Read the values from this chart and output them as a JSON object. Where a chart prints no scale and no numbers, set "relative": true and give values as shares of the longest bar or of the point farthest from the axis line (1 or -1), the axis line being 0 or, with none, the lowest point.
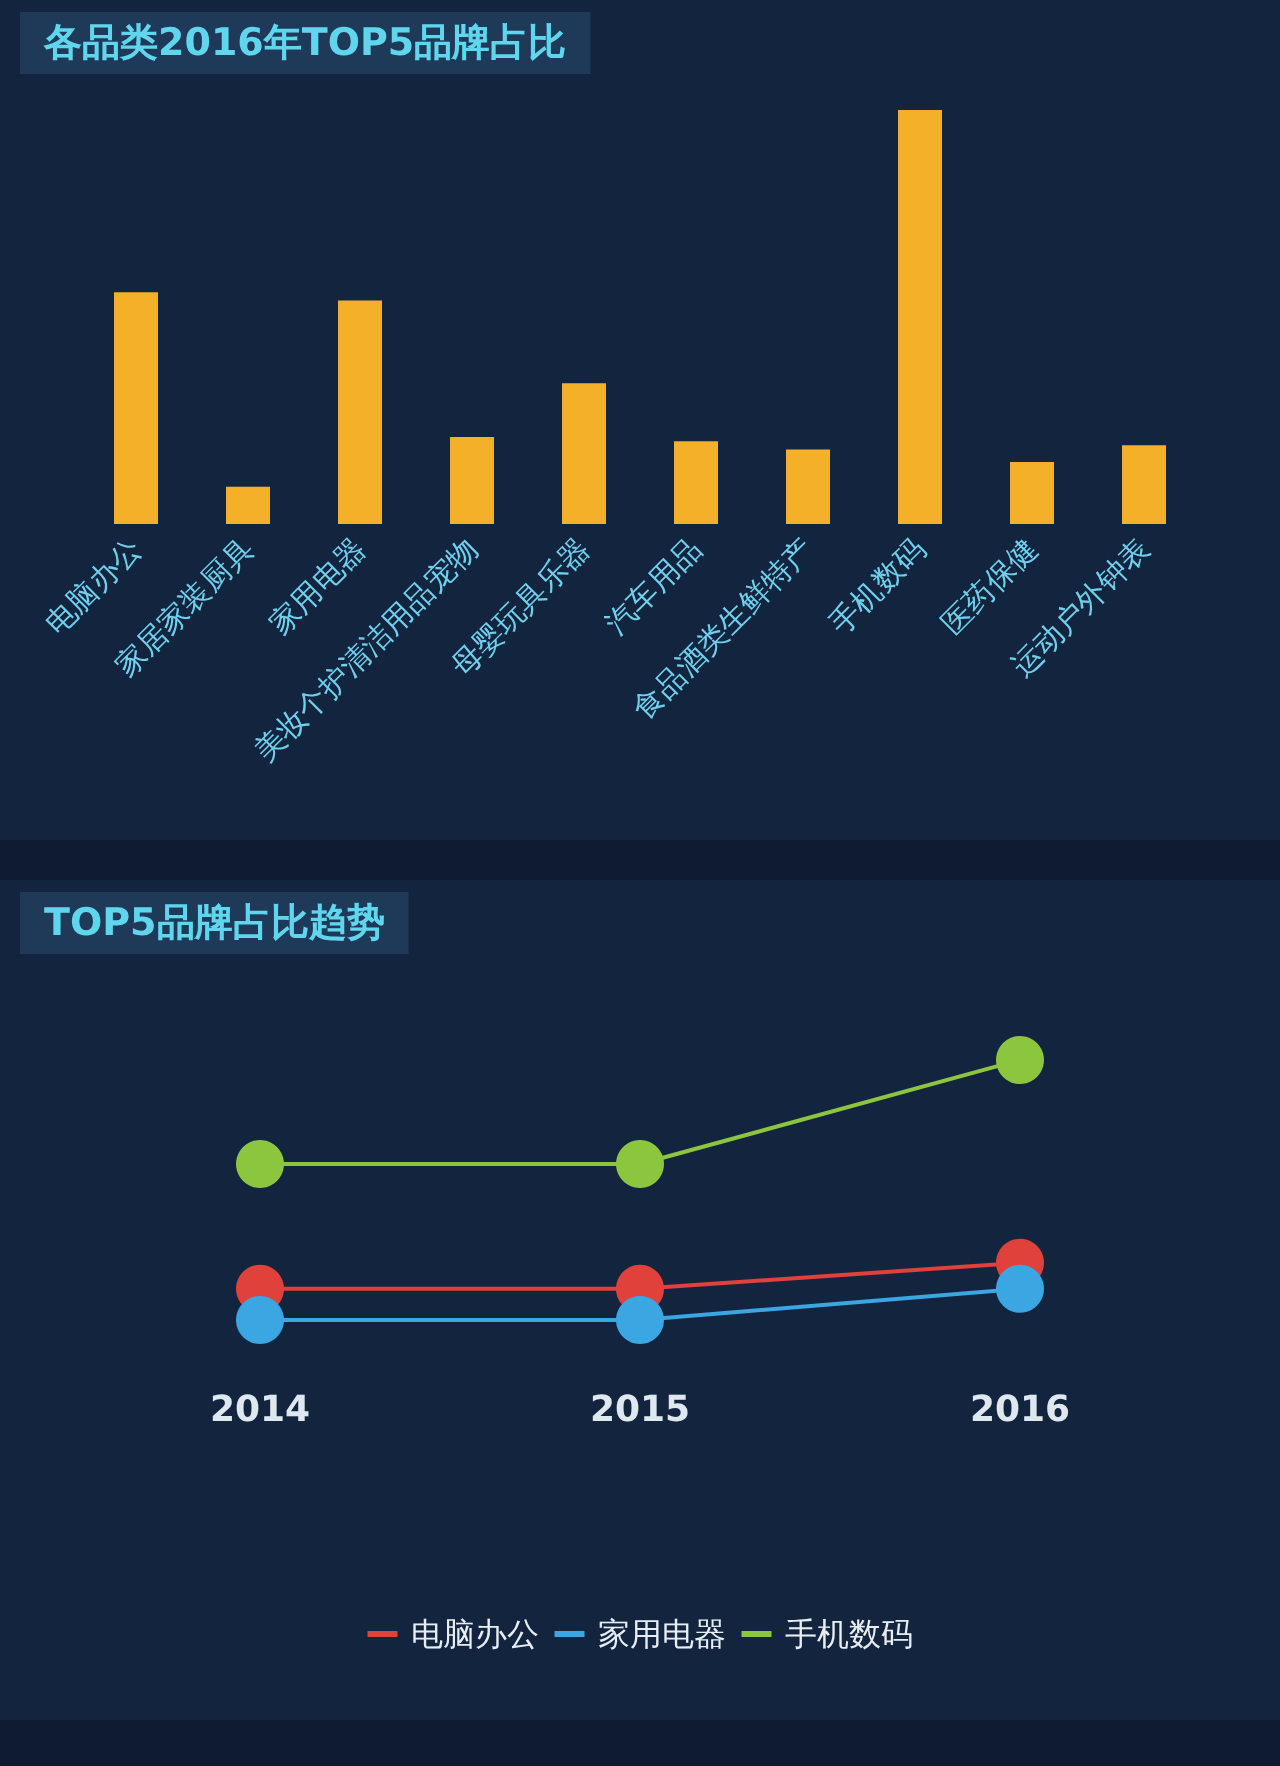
{
  "chart_data": [
    {
      "type": "bar",
      "title": "各品类2016年TOP5品牌占比",
      "categories": [
        "电脑办公",
        "家居家装厨具",
        "家用电器",
        "美妆个护清洁用品宠物",
        "母婴玩具乐器",
        "汽车用品",
        "食品酒类生鲜特产",
        "手机数码",
        "医药保健",
        "运动户外钟表"
      ],
      "values": [
        0.56,
        0.09,
        0.54,
        0.21,
        0.34,
        0.2,
        0.18,
        1,
        0.15,
        0.19
      ],
      "color": "#f5b02a",
      "relative": true,
      "grid": false,
      "legend": false
    },
    {
      "type": "line",
      "title": "TOP5品牌占比趋势",
      "categories": [
        "2014",
        "2015",
        "2016"
      ],
      "series": [
        {
          "name": "电脑办公",
          "color": "#e0413b",
          "values": [
            0.12,
            0.12,
            0.22
          ]
        },
        {
          "name": "家用电器",
          "color": "#3aa6e2",
          "values": [
            0,
            0,
            0.12
          ]
        },
        {
          "name": "手机数码",
          "color": "#8cc63f",
          "values": [
            0.6,
            0.6,
            1
          ]
        }
      ],
      "relative": true,
      "grid": false,
      "legend": "bottom",
      "marker": "circle",
      "line_style": "solid"
    }
  ]
}
